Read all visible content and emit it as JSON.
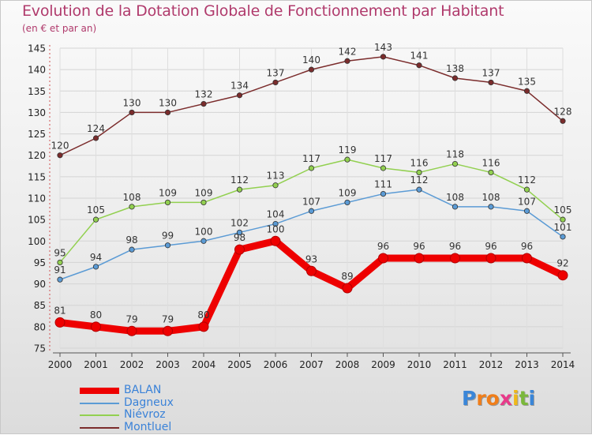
{
  "title": "Evolution de la Dotation Globale de Fonctionnement par Habitant",
  "subtitle": "(en € et par an)",
  "logo": {
    "text": "Proxiti",
    "letters": [
      "P",
      "r",
      "o",
      "x",
      "i",
      "t",
      "i"
    ],
    "colors": [
      "#3a86d8",
      "#f07e1a",
      "#f07e1a",
      "#e83a8a",
      "#f0b81a",
      "#7ab83a",
      "#3a86d8"
    ]
  },
  "chart_data": {
    "type": "line",
    "x": [
      "2000",
      "2001",
      "2002",
      "2003",
      "2004",
      "2005",
      "2006",
      "2007",
      "2008",
      "2009",
      "2010",
      "2011",
      "2012",
      "2013",
      "2014"
    ],
    "ylim": [
      75,
      145
    ],
    "yticks": [
      75,
      80,
      85,
      90,
      95,
      100,
      105,
      110,
      115,
      120,
      125,
      130,
      135,
      140,
      145
    ],
    "grid": true,
    "legend_position": "bottom-left",
    "series": [
      {
        "name": "BALAN",
        "color": "#ee0000",
        "values": [
          81,
          80,
          79,
          79,
          80,
          98,
          100,
          93,
          89,
          96,
          96,
          96,
          96,
          96,
          92
        ]
      },
      {
        "name": "Dagneux",
        "color": "#5b9bd5",
        "values": [
          91,
          94,
          98,
          99,
          100,
          102,
          104,
          107,
          109,
          111,
          112,
          108,
          108,
          107,
          101
        ]
      },
      {
        "name": "Niévroz",
        "color": "#92d050",
        "values": [
          95,
          105,
          108,
          109,
          109,
          112,
          113,
          117,
          119,
          117,
          116,
          118,
          116,
          112,
          105
        ]
      },
      {
        "name": "Montluel",
        "color": "#7b2c2c",
        "values": [
          120,
          124,
          130,
          130,
          132,
          134,
          137,
          140,
          142,
          143,
          141,
          138,
          137,
          135,
          128
        ]
      }
    ]
  }
}
